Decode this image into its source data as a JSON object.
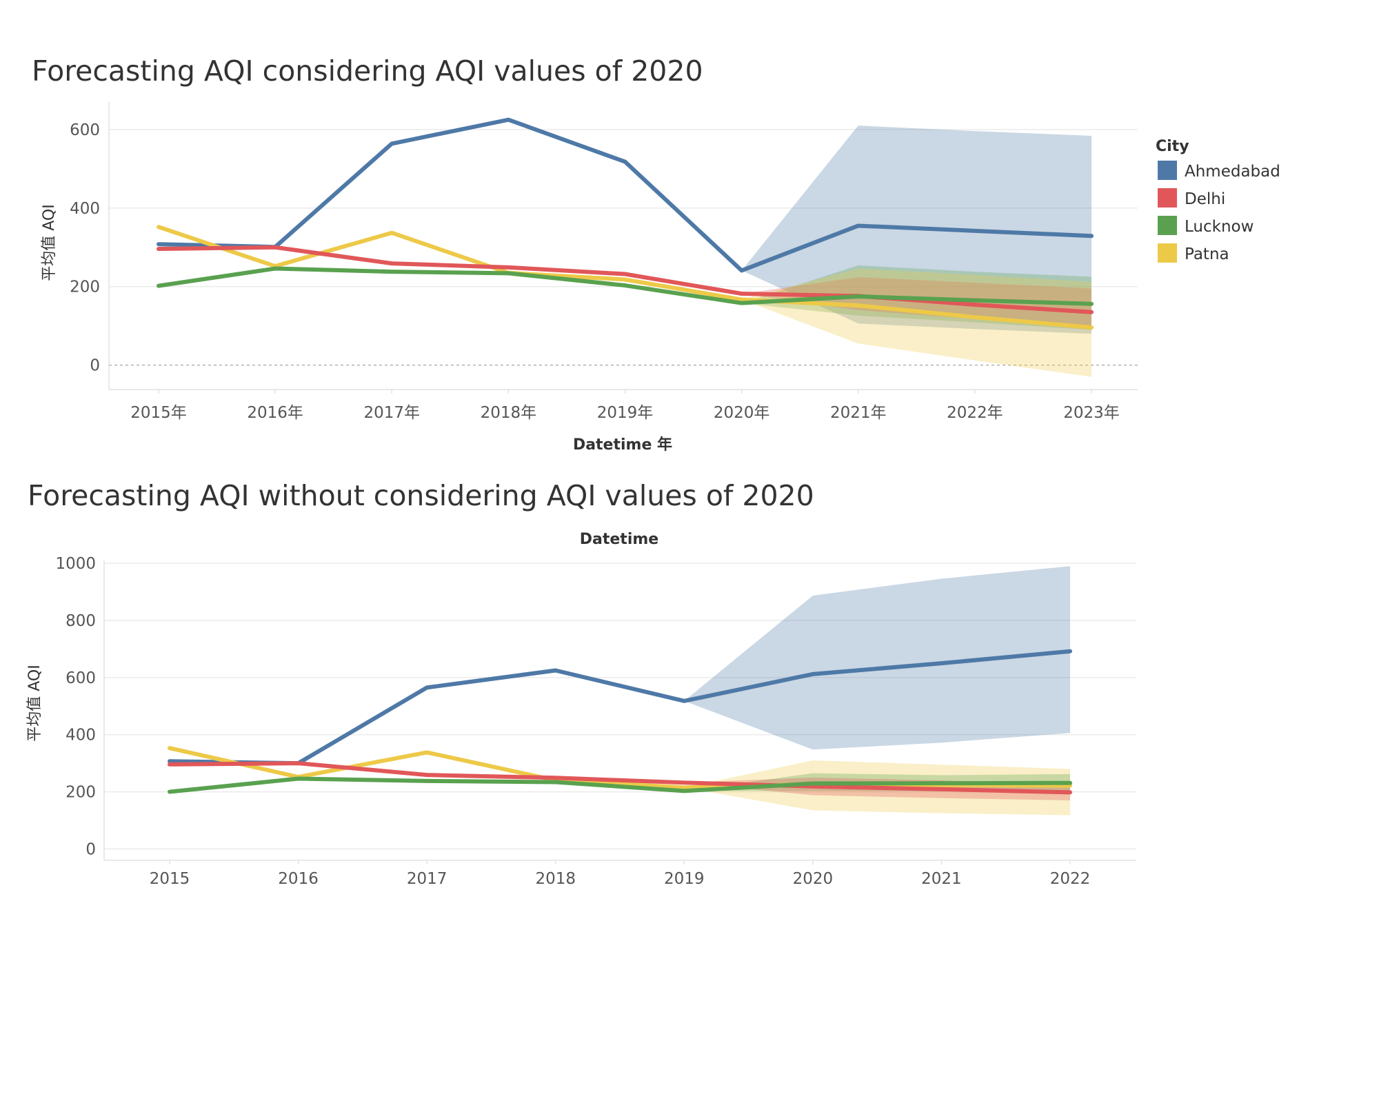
{
  "colors": {
    "Ahmedabad": "#4e79a7",
    "Delhi": "#e15759",
    "Lucknow": "#59a14f",
    "Patna": "#edc948"
  },
  "legend": {
    "title": "City",
    "items": [
      "Ahmedabad",
      "Delhi",
      "Lucknow",
      "Patna"
    ]
  },
  "chart_data": [
    {
      "type": "line",
      "title": "Forecasting AQI considering AQI values of 2020",
      "xlabel": "Datetime 年",
      "ylabel": "平均值 AQI",
      "x_position": "bottom",
      "categories": [
        "2015年",
        "2016年",
        "2017年",
        "2018年",
        "2019年",
        "2020年",
        "2021年",
        "2022年",
        "2023年"
      ],
      "ylim": [
        -62,
        670
      ],
      "yticks": [
        0,
        200,
        400,
        600
      ],
      "zero_line": true,
      "legend_position": "right",
      "series": [
        {
          "name": "Ahmedabad",
          "start": 0,
          "values": [
            308,
            301,
            564,
            625,
            518,
            241,
            355,
            342,
            329
          ]
        },
        {
          "name": "Delhi",
          "start": 0,
          "values": [
            296,
            300,
            259,
            249,
            232,
            182,
            176,
            154,
            135
          ]
        },
        {
          "name": "Lucknow",
          "start": 0,
          "values": [
            202,
            246,
            238,
            234,
            203,
            158,
            175,
            165,
            156
          ]
        },
        {
          "name": "Patna",
          "start": 0,
          "values": [
            352,
            252,
            337,
            235,
            218,
            167,
            152,
            122,
            96
          ]
        }
      ],
      "bands": [
        {
          "name": "Ahmedabad",
          "start": 5,
          "lower": [
            241,
            106,
            92,
            80
          ],
          "upper": [
            241,
            610,
            596,
            584
          ]
        },
        {
          "name": "Lucknow",
          "start": 5,
          "lower": [
            158,
            126,
            109,
            90
          ],
          "upper": [
            158,
            254,
            238,
            225
          ]
        },
        {
          "name": "Delhi",
          "start": 5,
          "lower": [
            182,
            140,
            117,
            92
          ],
          "upper": [
            182,
            224,
            210,
            195
          ]
        },
        {
          "name": "Patna",
          "start": 5,
          "lower": [
            167,
            55,
            12,
            -30
          ],
          "upper": [
            167,
            246,
            230,
            212
          ]
        }
      ]
    },
    {
      "type": "line",
      "title": "Forecasting AQI without considering AQI values of 2020",
      "xlabel": "Datetime",
      "ylabel": "平均值 AQI",
      "x_position": "top",
      "categories": [
        "2015",
        "2016",
        "2017",
        "2018",
        "2019",
        "2020",
        "2021",
        "2022"
      ],
      "ylim": [
        -40,
        1010
      ],
      "yticks": [
        0,
        200,
        400,
        600,
        800,
        1000
      ],
      "zero_line": false,
      "legend_position": "right",
      "series": [
        {
          "name": "Ahmedabad",
          "start": 0,
          "values": [
            307,
            300,
            565,
            625,
            518,
            612,
            650,
            692
          ]
        },
        {
          "name": "Delhi",
          "start": 0,
          "values": [
            296,
            300,
            259,
            249,
            232,
            219,
            209,
            198
          ]
        },
        {
          "name": "Lucknow",
          "start": 0,
          "values": [
            200,
            246,
            238,
            234,
            203,
            229,
            230,
            231
          ]
        },
        {
          "name": "Patna",
          "start": 0,
          "values": [
            353,
            252,
            338,
            240,
            215,
            227,
            224,
            222
          ]
        }
      ],
      "bands": [
        {
          "name": "Ahmedabad",
          "start": 4,
          "lower": [
            518,
            348,
            372,
            406
          ],
          "upper": [
            518,
            887,
            946,
            990
          ]
        },
        {
          "name": "Patna",
          "start": 4,
          "lower": [
            215,
            135,
            125,
            118
          ],
          "upper": [
            215,
            310,
            295,
            280
          ]
        },
        {
          "name": "Lucknow",
          "start": 4,
          "lower": [
            203,
            203,
            202,
            200
          ],
          "upper": [
            203,
            265,
            258,
            262
          ]
        },
        {
          "name": "Delhi",
          "start": 4,
          "lower": [
            232,
            188,
            178,
            170
          ],
          "upper": [
            232,
            250,
            240,
            225
          ]
        }
      ]
    }
  ]
}
